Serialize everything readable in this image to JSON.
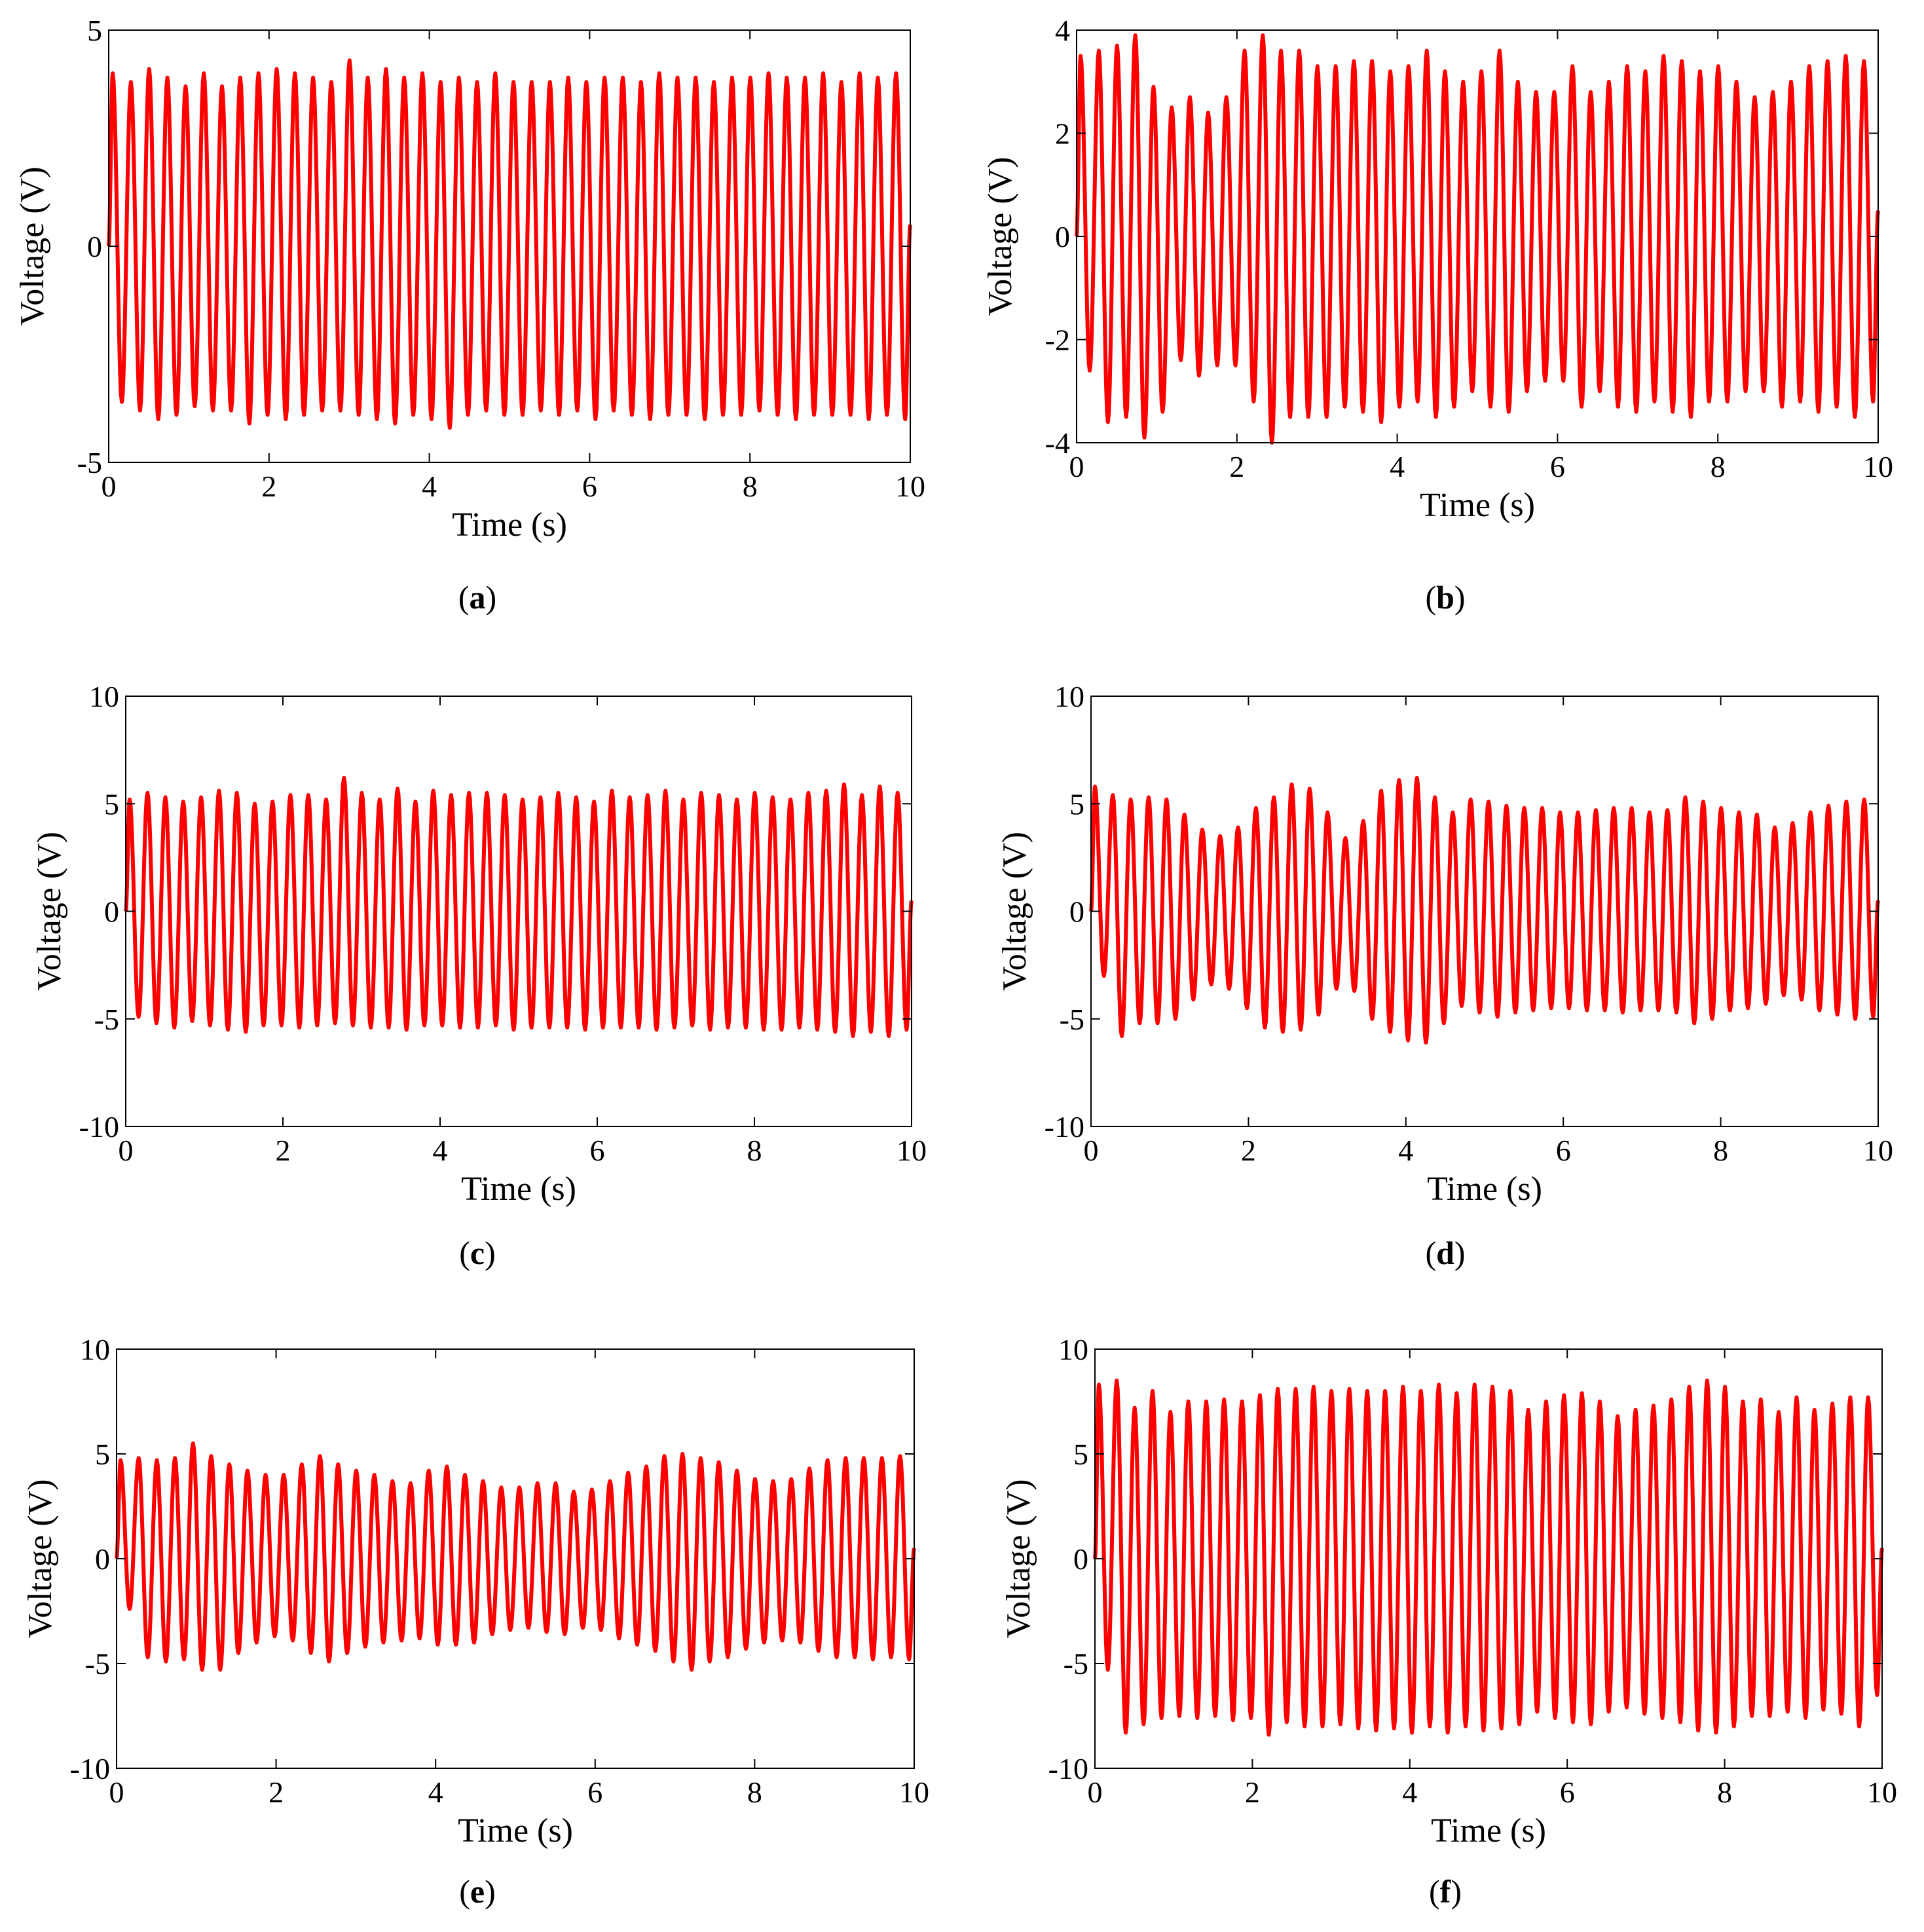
{
  "figure": {
    "line_color": "#ff0000",
    "axis_color": "#000000",
    "background": "#ffffff"
  },
  "chart_data": [
    {
      "id": "a",
      "type": "line",
      "caption": "a",
      "xlabel": "Time (s)",
      "ylabel": "Voltage (V)",
      "xlim": [
        0,
        10
      ],
      "ylim": [
        -5,
        5
      ],
      "xticks": [
        0,
        2,
        4,
        6,
        8,
        10
      ],
      "yticks": [
        -5,
        0,
        5
      ],
      "xtick_labels": [
        "0",
        "2",
        "4",
        "6",
        "8",
        "10"
      ],
      "ytick_labels": [
        "-5",
        "0",
        "5"
      ],
      "series": [
        {
          "name": "voltage",
          "cycles": 44,
          "peaks": [
            4.0,
            3.8,
            4.1,
            3.9,
            3.7,
            4.0,
            3.7,
            3.9,
            4.0,
            4.1,
            4.0,
            3.9,
            3.8,
            4.3,
            3.9,
            4.1,
            3.9,
            4.0,
            3.8,
            3.9,
            3.8,
            4.0,
            3.8,
            3.8,
            3.8,
            3.9,
            3.8,
            3.9,
            3.9,
            3.8,
            4.0,
            3.9,
            3.9,
            3.8,
            3.9,
            3.9,
            4.0,
            3.9,
            3.9,
            4.0,
            3.8,
            4.0,
            3.9,
            4.0
          ],
          "troughs": [
            -3.6,
            -3.8,
            -4.0,
            -3.9,
            -3.7,
            -3.8,
            -3.8,
            -4.1,
            -3.9,
            -4.0,
            -3.9,
            -3.8,
            -3.8,
            -3.9,
            -4.0,
            -4.1,
            -3.9,
            -4.0,
            -4.2,
            -3.9,
            -3.8,
            -3.9,
            -3.9,
            -3.8,
            -3.9,
            -3.8,
            -4.0,
            -3.8,
            -3.9,
            -4.0,
            -3.9,
            -3.9,
            -4.0,
            -3.9,
            -3.9,
            -3.8,
            -3.9,
            -4.0,
            -3.9,
            -3.9,
            -3.9,
            -4.0,
            -3.9,
            -4.0
          ]
        }
      ]
    },
    {
      "id": "b",
      "type": "line",
      "caption": "b",
      "xlabel": "Time (s)",
      "ylabel": "Voltage (V)",
      "xlim": [
        0,
        10
      ],
      "ylim": [
        -4,
        4
      ],
      "xticks": [
        0,
        2,
        4,
        6,
        8,
        10
      ],
      "yticks": [
        -4,
        -2,
        0,
        2,
        4
      ],
      "xtick_labels": [
        "0",
        "2",
        "4",
        "6",
        "8",
        "10"
      ],
      "ytick_labels": [
        "-4",
        "-2",
        "0",
        "2",
        "4"
      ],
      "series": [
        {
          "name": "voltage",
          "cycles": 44,
          "peaks": [
            3.5,
            3.6,
            3.7,
            3.9,
            2.9,
            2.5,
            2.7,
            2.4,
            2.7,
            3.6,
            3.9,
            3.6,
            3.6,
            3.3,
            3.3,
            3.4,
            3.4,
            3.2,
            3.3,
            3.6,
            3.2,
            3.0,
            3.2,
            3.6,
            3.0,
            2.8,
            2.8,
            3.3,
            2.8,
            3.0,
            3.3,
            3.2,
            3.5,
            3.4,
            3.2,
            3.3,
            3.0,
            2.7,
            2.8,
            3.0,
            3.3,
            3.4,
            3.5,
            3.4
          ],
          "troughs": [
            -2.6,
            -3.6,
            -3.5,
            -3.9,
            -3.4,
            -2.4,
            -2.7,
            -2.5,
            -2.5,
            -3.2,
            -4.0,
            -3.5,
            -3.5,
            -3.5,
            -3.3,
            -3.4,
            -3.6,
            -3.3,
            -3.2,
            -3.5,
            -3.3,
            -3.0,
            -3.3,
            -3.4,
            -3.0,
            -2.8,
            -2.8,
            -3.3,
            -3.0,
            -3.3,
            -3.4,
            -3.2,
            -3.4,
            -3.5,
            -3.2,
            -3.2,
            -3.0,
            -3.0,
            -3.3,
            -3.2,
            -3.4,
            -3.3,
            -3.5,
            -3.2
          ]
        }
      ]
    },
    {
      "id": "c",
      "type": "line",
      "caption": "c",
      "xlabel": "Time (s)",
      "ylabel": "Voltage (V)",
      "xlim": [
        0,
        10
      ],
      "ylim": [
        -10,
        10
      ],
      "xticks": [
        0,
        2,
        4,
        6,
        8,
        10
      ],
      "yticks": [
        -10,
        -5,
        0,
        5,
        10
      ],
      "xtick_labels": [
        "0",
        "2",
        "4",
        "6",
        "8",
        "10"
      ],
      "ytick_labels": [
        "-10",
        "-5",
        "0",
        "5",
        "10"
      ],
      "series": [
        {
          "name": "voltage",
          "cycles": 44,
          "peaks": [
            5.2,
            5.5,
            5.3,
            5.1,
            5.3,
            5.6,
            5.5,
            5.0,
            5.1,
            5.4,
            5.4,
            5.2,
            6.2,
            5.5,
            5.2,
            5.7,
            5.1,
            5.6,
            5.4,
            5.5,
            5.5,
            5.4,
            5.2,
            5.3,
            5.5,
            5.3,
            5.1,
            5.6,
            5.3,
            5.4,
            5.6,
            5.2,
            5.5,
            5.4,
            5.2,
            5.5,
            5.3,
            5.2,
            5.5,
            5.6,
            5.9,
            5.4,
            5.8,
            5.5
          ],
          "troughs": [
            -4.9,
            -5.2,
            -5.4,
            -5.1,
            -5.3,
            -5.5,
            -5.6,
            -5.3,
            -5.3,
            -5.4,
            -5.3,
            -5.2,
            -5.3,
            -5.4,
            -5.4,
            -5.5,
            -5.3,
            -5.3,
            -5.4,
            -5.4,
            -5.3,
            -5.5,
            -5.4,
            -5.4,
            -5.4,
            -5.5,
            -5.4,
            -5.4,
            -5.4,
            -5.5,
            -5.4,
            -5.3,
            -5.5,
            -5.4,
            -5.4,
            -5.5,
            -5.5,
            -5.4,
            -5.5,
            -5.6,
            -5.8,
            -5.6,
            -5.8,
            -5.5
          ]
        }
      ]
    },
    {
      "id": "d",
      "type": "line",
      "caption": "d",
      "xlabel": "Time (s)",
      "ylabel": "Voltage (V)",
      "xlim": [
        0,
        10
      ],
      "ylim": [
        -10,
        10
      ],
      "xticks": [
        0,
        2,
        4,
        6,
        8,
        10
      ],
      "yticks": [
        -10,
        -5,
        0,
        5,
        10
      ],
      "xtick_labels": [
        "0",
        "2",
        "4",
        "6",
        "8",
        "10"
      ],
      "ytick_labels": [
        "-10",
        "-5",
        "0",
        "5",
        "10"
      ],
      "series": [
        {
          "name": "voltage",
          "cycles": 44,
          "peaks": [
            5.8,
            5.4,
            5.2,
            5.3,
            5.2,
            4.5,
            3.8,
            3.5,
            3.9,
            4.8,
            5.3,
            5.9,
            5.7,
            4.6,
            3.4,
            4.2,
            5.6,
            6.1,
            6.2,
            5.3,
            4.6,
            5.2,
            5.1,
            4.9,
            4.8,
            4.8,
            4.6,
            4.6,
            4.7,
            4.8,
            4.8,
            4.6,
            4.7,
            5.3,
            5.1,
            4.8,
            4.6,
            4.5,
            3.9,
            4.1,
            4.6,
            4.9,
            5.1,
            5.2
          ],
          "troughs": [
            -3.0,
            -5.8,
            -5.2,
            -5.2,
            -5.0,
            -4.1,
            -3.4,
            -3.6,
            -4.5,
            -5.4,
            -5.6,
            -5.5,
            -4.8,
            -3.6,
            -3.7,
            -5.0,
            -5.6,
            -6.0,
            -6.1,
            -5.2,
            -4.4,
            -4.7,
            -4.9,
            -4.7,
            -4.6,
            -4.5,
            -4.5,
            -4.6,
            -4.6,
            -4.7,
            -4.6,
            -4.6,
            -4.7,
            -5.2,
            -5.0,
            -4.6,
            -4.5,
            -4.3,
            -3.9,
            -4.1,
            -4.6,
            -4.8,
            -5.0,
            -4.9
          ]
        }
      ]
    },
    {
      "id": "e",
      "type": "line",
      "caption": "e",
      "xlabel": "Time (s)",
      "ylabel": "Voltage (V)",
      "xlim": [
        0,
        10
      ],
      "ylim": [
        -10,
        10
      ],
      "xticks": [
        0,
        2,
        4,
        6,
        8,
        10
      ],
      "yticks": [
        -10,
        -5,
        0,
        5,
        10
      ],
      "xtick_labels": [
        "0",
        "2",
        "4",
        "6",
        "8",
        "10"
      ],
      "ytick_labels": [
        "-10",
        "-5",
        "0",
        "5",
        "10"
      ],
      "series": [
        {
          "name": "voltage",
          "cycles": 44,
          "peaks": [
            4.7,
            4.8,
            4.7,
            4.8,
            5.5,
            4.9,
            4.5,
            4.2,
            4.0,
            4.0,
            4.5,
            4.9,
            4.5,
            4.2,
            4.0,
            3.7,
            3.6,
            4.2,
            4.4,
            4.0,
            3.7,
            3.4,
            3.4,
            3.6,
            3.6,
            3.2,
            3.3,
            3.7,
            4.1,
            4.4,
            4.9,
            5.0,
            4.8,
            4.6,
            4.2,
            3.8,
            3.7,
            3.8,
            4.3,
            4.7,
            4.8,
            4.8,
            4.8,
            4.9
          ],
          "troughs": [
            -2.4,
            -4.7,
            -4.9,
            -4.8,
            -5.3,
            -5.3,
            -4.5,
            -4.0,
            -3.7,
            -3.9,
            -4.5,
            -4.9,
            -4.5,
            -4.2,
            -4.0,
            -3.9,
            -3.8,
            -4.1,
            -4.1,
            -4.0,
            -3.6,
            -3.4,
            -3.3,
            -3.5,
            -3.6,
            -3.3,
            -3.4,
            -3.8,
            -4.1,
            -4.4,
            -4.9,
            -5.3,
            -4.9,
            -4.7,
            -4.3,
            -4.0,
            -3.9,
            -4.0,
            -4.4,
            -4.7,
            -4.7,
            -4.8,
            -4.7,
            -4.8
          ]
        }
      ]
    },
    {
      "id": "f",
      "type": "line",
      "caption": "f",
      "xlabel": "Time (s)",
      "ylabel": "Voltage (V)",
      "xlim": [
        0,
        10
      ],
      "ylim": [
        -10,
        10
      ],
      "xticks": [
        0,
        2,
        4,
        6,
        8,
        10
      ],
      "yticks": [
        -10,
        -5,
        0,
        5,
        10
      ],
      "xtick_labels": [
        "0",
        "2",
        "4",
        "6",
        "8",
        "10"
      ],
      "ytick_labels": [
        "-10",
        "-5",
        "0",
        "5",
        "10"
      ],
      "series": [
        {
          "name": "voltage",
          "cycles": 44,
          "peaks": [
            8.3,
            8.5,
            7.2,
            8.0,
            7.0,
            7.5,
            7.5,
            7.6,
            7.5,
            7.8,
            8.1,
            8.1,
            8.2,
            8.0,
            8.1,
            8.0,
            8.0,
            8.2,
            8.0,
            8.3,
            7.9,
            8.3,
            8.2,
            8.0,
            7.1,
            7.5,
            7.8,
            7.9,
            7.5,
            6.8,
            7.1,
            7.3,
            7.6,
            8.2,
            8.5,
            8.2,
            7.5,
            7.6,
            7.0,
            7.7,
            7.1,
            7.4,
            7.7,
            7.7
          ],
          "troughs": [
            -5.3,
            -8.3,
            -7.9,
            -7.6,
            -7.5,
            -7.6,
            -7.5,
            -7.7,
            -7.6,
            -8.4,
            -7.8,
            -8.0,
            -8.0,
            -7.9,
            -8.1,
            -8.2,
            -8.1,
            -8.3,
            -8.0,
            -8.3,
            -8.0,
            -8.2,
            -8.1,
            -7.9,
            -7.3,
            -7.6,
            -7.8,
            -7.9,
            -7.3,
            -7.1,
            -7.4,
            -7.6,
            -7.8,
            -8.2,
            -8.3,
            -8.0,
            -7.5,
            -7.5,
            -7.3,
            -7.6,
            -7.2,
            -7.4,
            -8.0,
            -6.5
          ]
        }
      ]
    }
  ]
}
